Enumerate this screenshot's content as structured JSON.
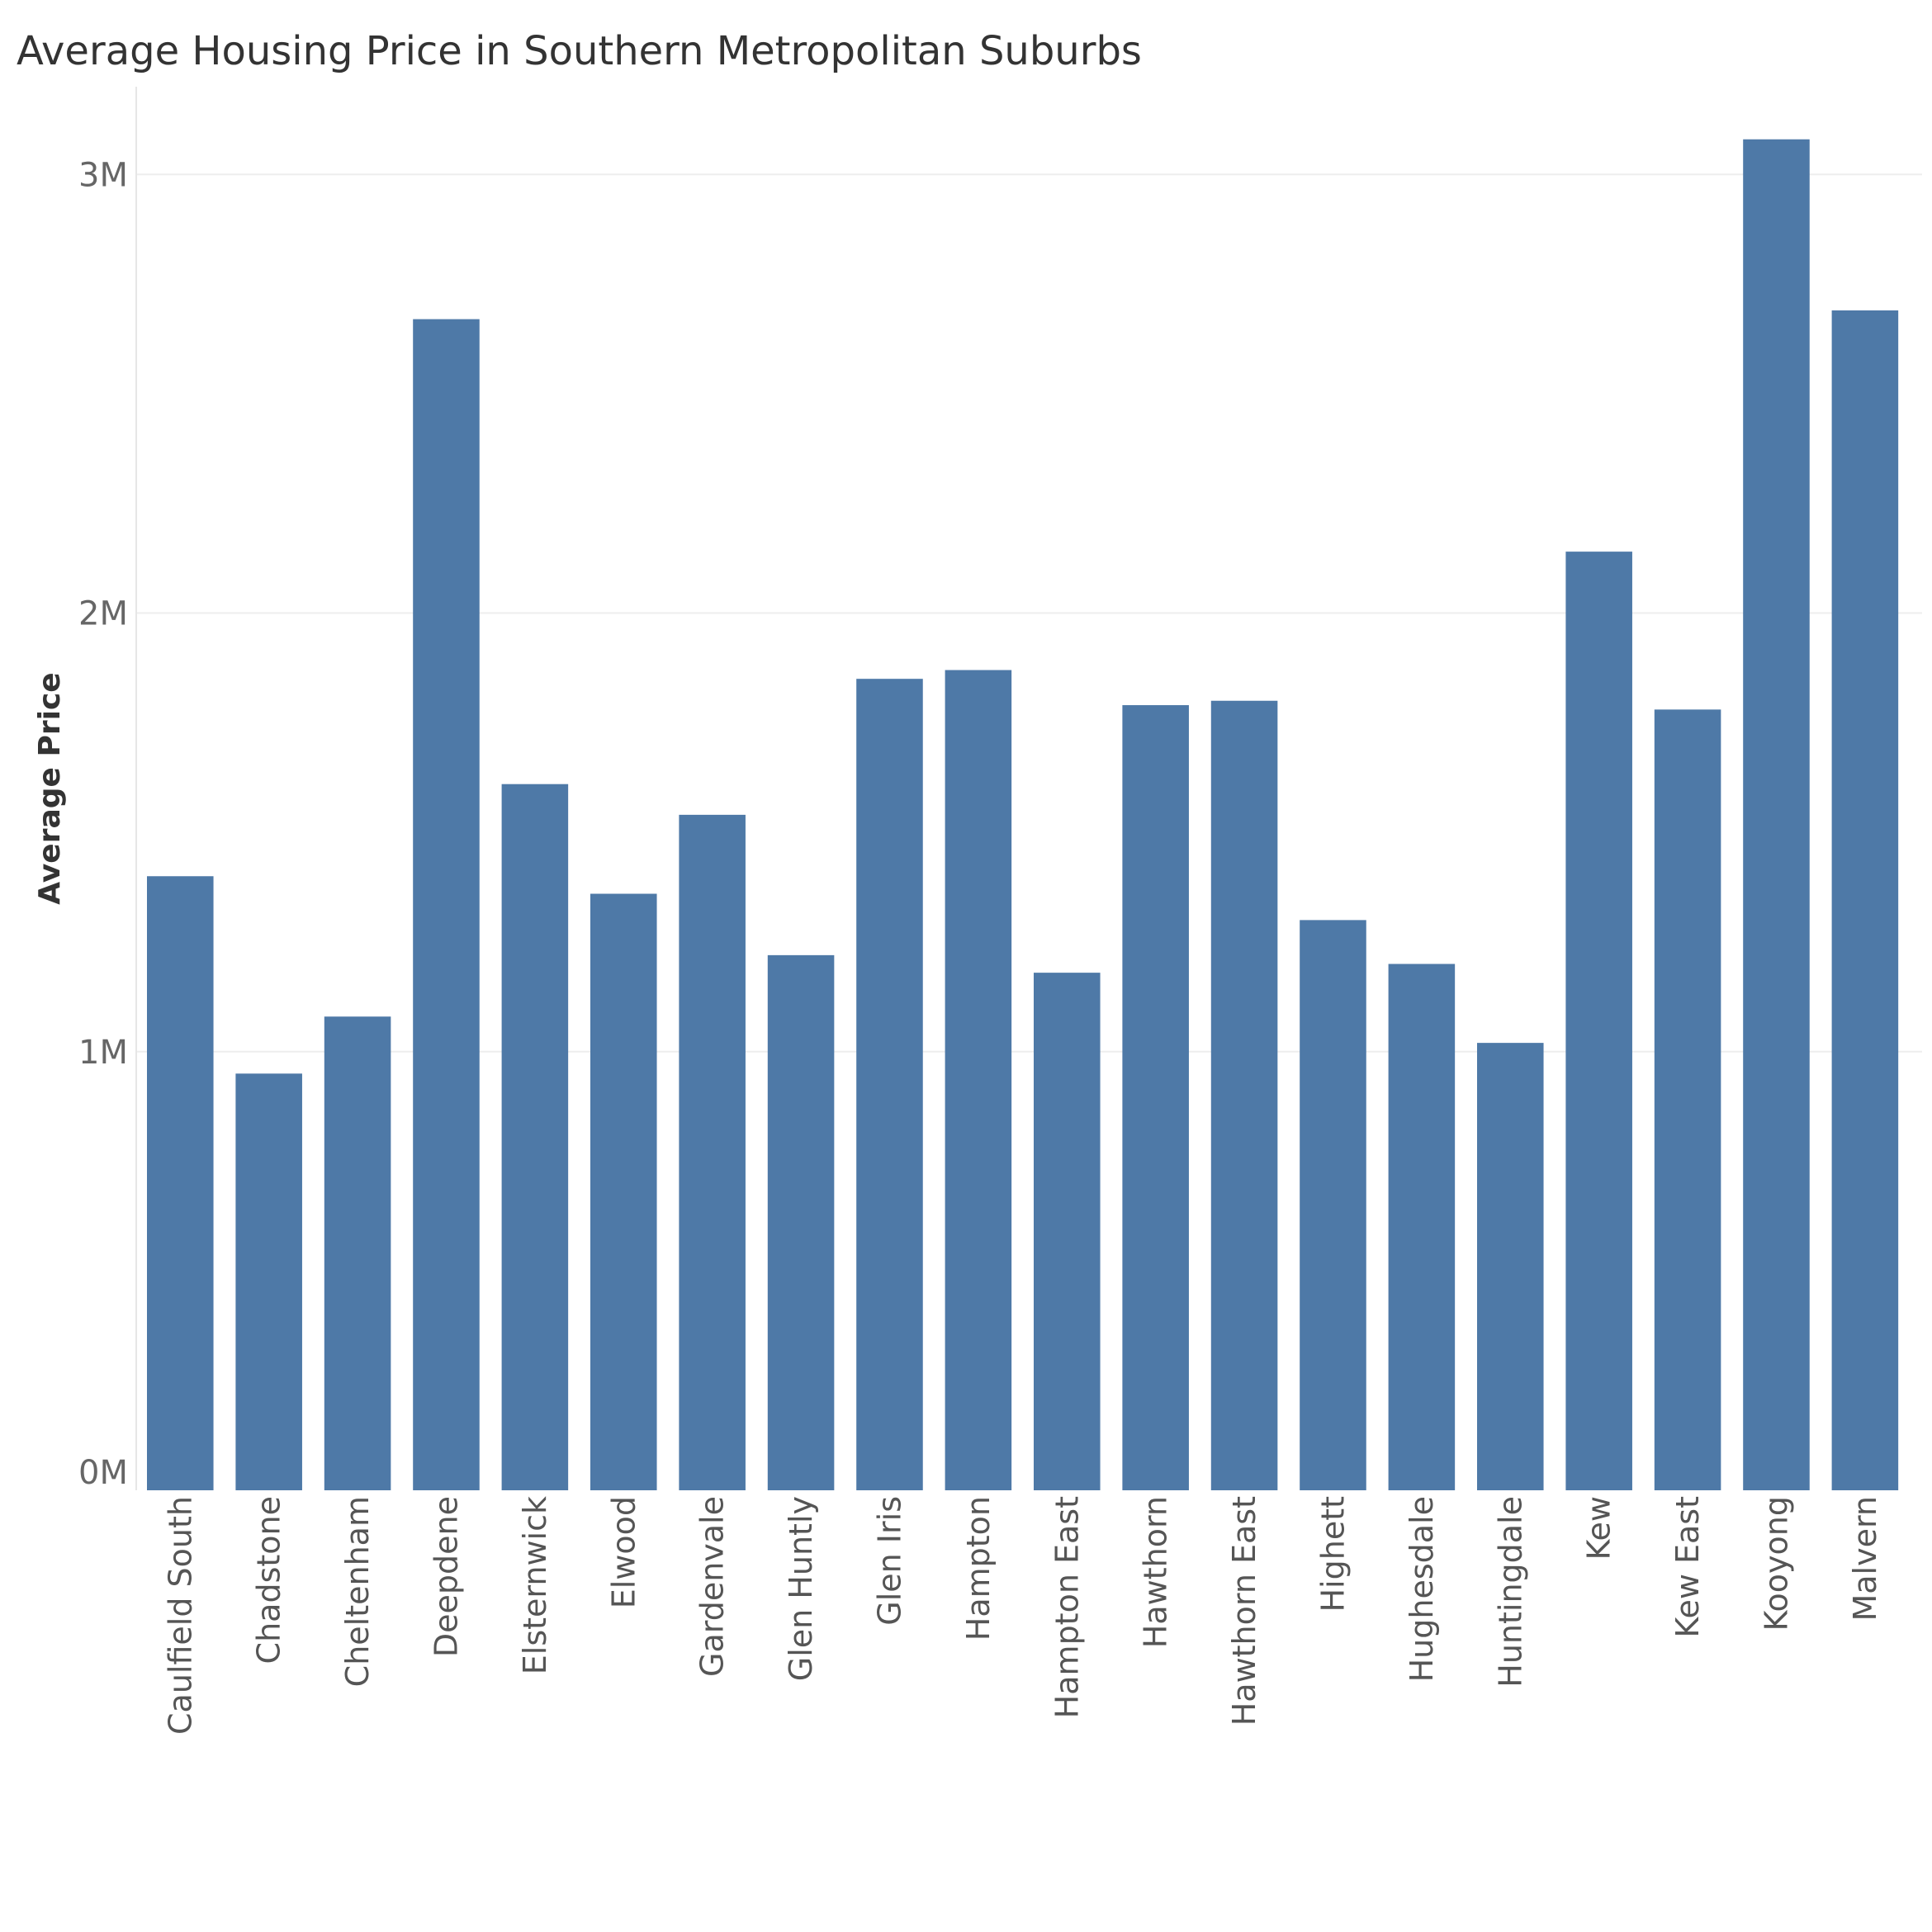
{
  "chart_data": {
    "type": "bar",
    "title": "Average Housing Price in Southern Metropolitan Suburbs",
    "xlabel": "",
    "ylabel": "Average Price",
    "ylim": [
      0,
      3200000
    ],
    "yticks": [
      {
        "value": 0,
        "label": "0M"
      },
      {
        "value": 1000000,
        "label": "1M"
      },
      {
        "value": 2000000,
        "label": "2M"
      },
      {
        "value": 3000000,
        "label": "3M"
      }
    ],
    "grid": true,
    "bar_color": "#4e79a7",
    "categories": [
      "Caulfield South",
      "Chadstone",
      "Cheltenham",
      "Deepdene",
      "Elsternwick",
      "Elwood",
      "Gardenvale",
      "Glen Huntly",
      "Glen Iris",
      "Hampton",
      "Hampton East",
      "Hawthorn",
      "Hawthorn East",
      "Highett",
      "Hughesdale",
      "Huntingdale",
      "Kew",
      "Kew East",
      "Kooyong",
      "Malvern"
    ],
    "values": [
      1400000,
      950000,
      1080000,
      2670000,
      1610000,
      1360000,
      1540000,
      1220000,
      1850000,
      1870000,
      1180000,
      1790000,
      1800000,
      1300000,
      1200000,
      1020000,
      2140000,
      1780000,
      3080000,
      2690000
    ]
  }
}
